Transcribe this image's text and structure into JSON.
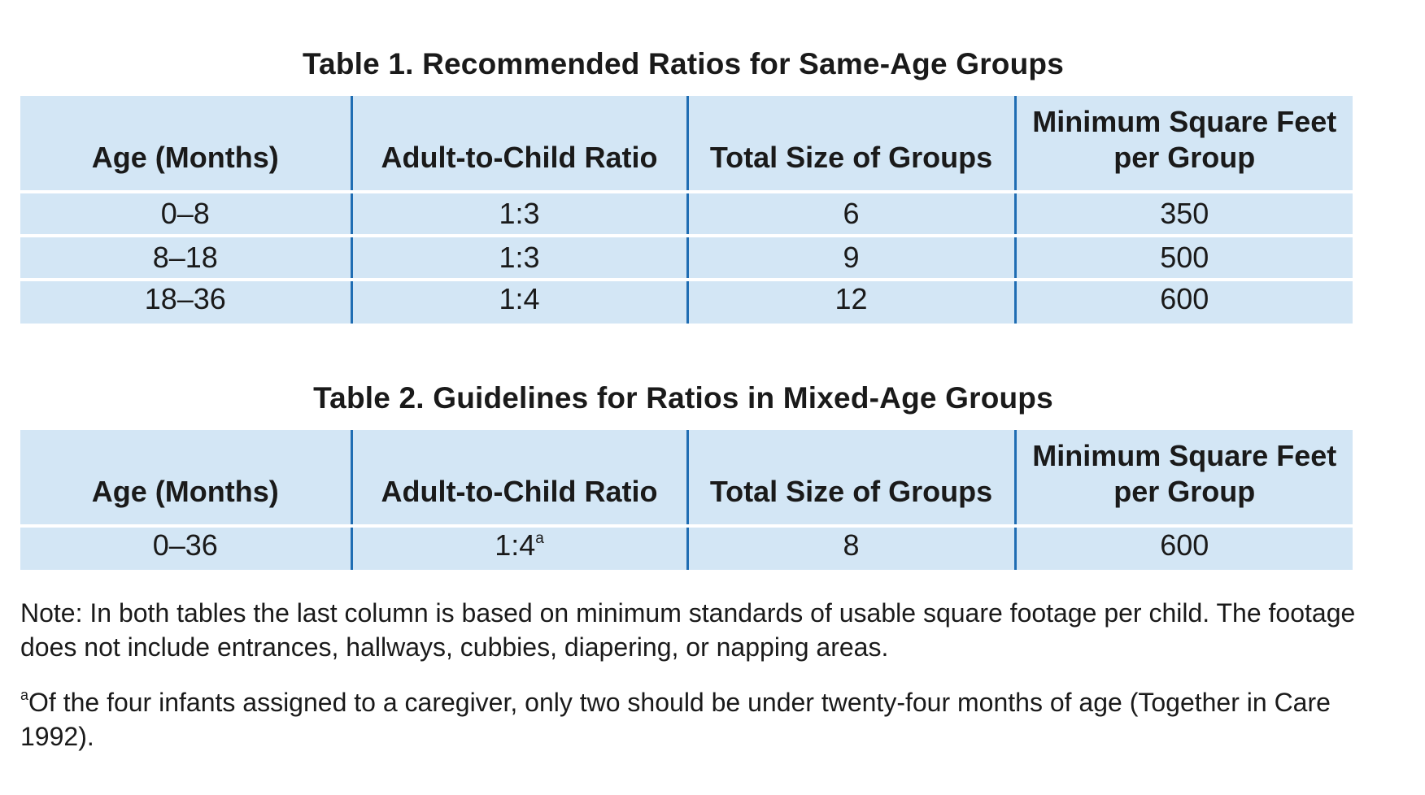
{
  "table1": {
    "caption": "Table 1. Recommended Ratios for Same-Age Groups",
    "headers": [
      "Age (Months)",
      "Adult-to-Child Ratio",
      "Total Size of Groups",
      "Minimum Square Feet per Group"
    ],
    "rows": [
      [
        "0–8",
        "1:3",
        "6",
        "350"
      ],
      [
        "8–18",
        "1:3",
        "9",
        "500"
      ],
      [
        "18–36",
        "1:4",
        "12",
        "600"
      ]
    ]
  },
  "table2": {
    "caption": "Table 2. Guidelines for Ratios in Mixed-Age Groups",
    "headers": [
      "Age (Months)",
      "Adult-to-Child Ratio",
      "Total Size of Groups",
      "Minimum Square Feet per Group"
    ],
    "rows": [
      [
        "0–36",
        "1:4",
        "8",
        "600"
      ]
    ],
    "ratio_footnote_marker": "a"
  },
  "notes": {
    "note": "Note: In both tables the last column is based on minimum standards of usable square footage per child. The footage does not include entrances, hallways, cubbies, diapering, or napping areas.",
    "footnote_marker": "a",
    "footnote": "Of the four infants assigned to a caregiver, only two should be under twenty-four months of age (Together in Care 1992)."
  },
  "colors": {
    "table_fill": "#d3e6f5",
    "column_rule": "#1f6db3",
    "row_rule": "#ffffff"
  }
}
